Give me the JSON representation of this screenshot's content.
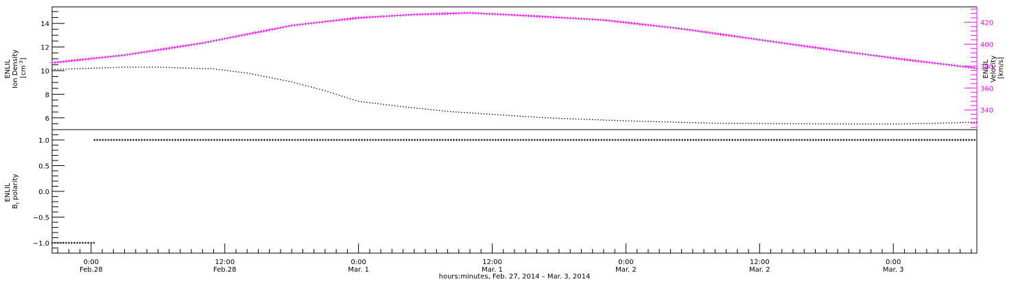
{
  "chart_data": [
    {
      "type": "line",
      "panel": "top",
      "x_unit": "hours since 2014-02-27 00:00",
      "left_axis": {
        "label_line1": "ENLIL",
        "label_line2": "Ion Density",
        "label_line3": "[cm",
        "label_exp": "-3",
        "label_close": "]",
        "ylim": [
          5.0,
          15.4
        ],
        "ticks": [
          6,
          8,
          10,
          12,
          14
        ],
        "tick_labels": [
          "6",
          "8",
          "10",
          "12",
          "14"
        ],
        "color": "#000000"
      },
      "right_axis": {
        "label_line1": "ENLIL",
        "label_line2": "Velocity",
        "label_line3": "[km/s]",
        "ylim": [
          322,
          434
        ],
        "ticks": [
          340,
          360,
          380,
          400,
          420
        ],
        "tick_labels": [
          "340",
          "360",
          "380",
          "400",
          "420"
        ],
        "color": "#ff00ff"
      },
      "series": [
        {
          "axis": "left",
          "color": "#000000",
          "points": [
            [
              20.5,
              10.1
            ],
            [
              24,
              10.2
            ],
            [
              27,
              10.3
            ],
            [
              30,
              10.3
            ],
            [
              35,
              10.15
            ],
            [
              38,
              9.8
            ],
            [
              42,
              9.05
            ],
            [
              45,
              8.3
            ],
            [
              48,
              7.4
            ],
            [
              52,
              6.95
            ],
            [
              56,
              6.55
            ],
            [
              60,
              6.3
            ],
            [
              65,
              6.0
            ],
            [
              72,
              5.75
            ],
            [
              80,
              5.55
            ],
            [
              88,
              5.5
            ],
            [
              96,
              5.48
            ],
            [
              100,
              5.55
            ],
            [
              103.5,
              5.65
            ]
          ]
        },
        {
          "axis": "right",
          "color": "#ff00ff",
          "points": [
            [
              20.5,
              383
            ],
            [
              27,
              390
            ],
            [
              34,
              401
            ],
            [
              42,
              417
            ],
            [
              48,
              424
            ],
            [
              53,
              427
            ],
            [
              58,
              428.5
            ],
            [
              63,
              426
            ],
            [
              70,
              422
            ],
            [
              77,
              414
            ],
            [
              84,
              404
            ],
            [
              91,
              394
            ],
            [
              97,
              386
            ],
            [
              103.5,
              378
            ]
          ]
        }
      ]
    },
    {
      "type": "scatter",
      "panel": "bottom",
      "x_unit": "hours since 2014-02-27 00:00",
      "ylabel_line1": "ENLIL",
      "ylabel_line2": "B",
      "ylabel_sub": "r",
      "ylabel_rest": " polarity",
      "ylim": [
        -1.2,
        1.2
      ],
      "ticks": [
        -1.0,
        -0.5,
        0.0,
        0.5,
        1.0
      ],
      "tick_labels": [
        "−1.0",
        "−0.5",
        "0.0",
        "0.5",
        "1.0"
      ],
      "series": [
        {
          "color": "#000000",
          "segments": [
            {
              "x_start": 20.5,
              "x_end": 24.3,
              "y": -1.0
            },
            {
              "x_start": 24.3,
              "x_end": 103.5,
              "y": 1.0
            }
          ]
        }
      ]
    }
  ],
  "x_axis": {
    "xlim": [
      20.5,
      103.5
    ],
    "major_ticks": [
      24,
      36,
      48,
      60,
      72,
      84,
      96
    ],
    "tick_labels": [
      {
        "time": "0:00",
        "date": "Feb.28"
      },
      {
        "time": "12:00",
        "date": "Feb.28"
      },
      {
        "time": "0:00",
        "date": "Mar. 1"
      },
      {
        "time": "12:00",
        "date": "Mar. 1"
      },
      {
        "time": "0:00",
        "date": "Mar. 2"
      },
      {
        "time": "12:00",
        "date": "Mar. 2"
      },
      {
        "time": "0:00",
        "date": "Mar. 3"
      }
    ],
    "title": "hours:minutes, Feb. 27, 2014 – Mar.  3, 2014"
  }
}
